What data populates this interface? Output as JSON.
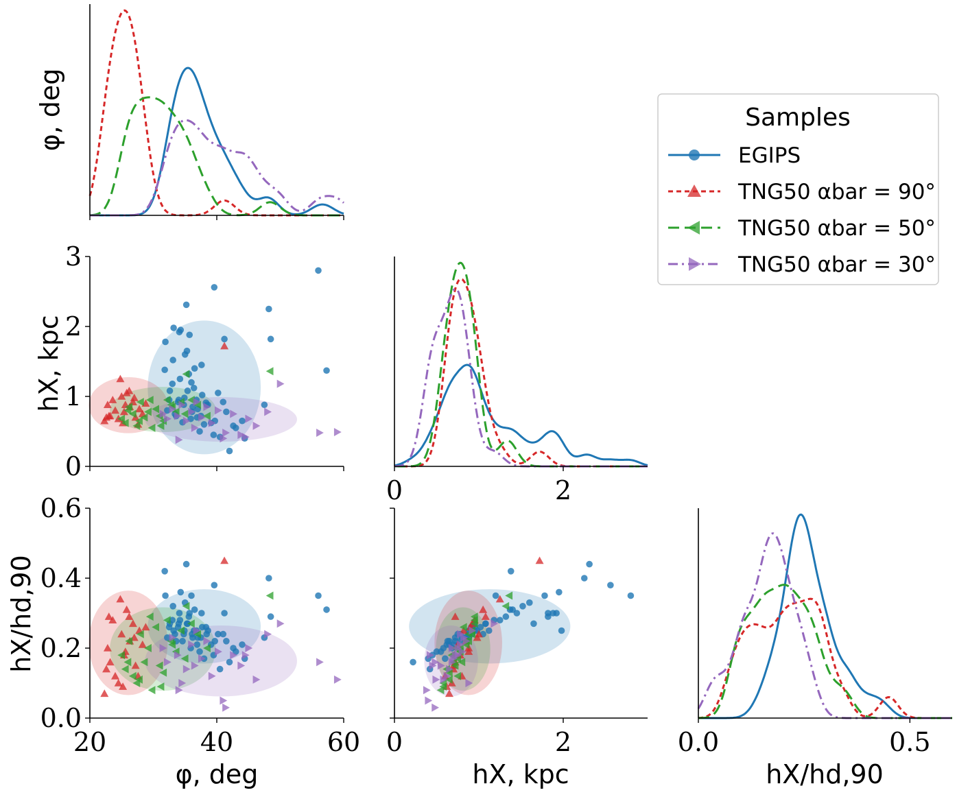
{
  "chart_data": {
    "type": "scatter",
    "subtype": "corner plot (pair plot with KDE diagonals and density contours)",
    "variables": [
      "φ, deg",
      "h_X, kpc",
      "h_X/h_d,90"
    ],
    "axis_labels": {
      "phi": "φ, deg",
      "hx": "hX, kpc",
      "ratio": "hX/hd,90"
    },
    "ranges": {
      "phi": [
        20,
        60
      ],
      "hx": [
        0,
        3
      ],
      "ratio": [
        0,
        0.6
      ]
    },
    "ticks": {
      "phi": [
        20,
        40,
        60
      ],
      "hx": [
        0,
        1,
        2,
        3
      ],
      "hx_x": [
        0,
        2
      ],
      "ratio": [
        0.0,
        0.2,
        0.4,
        0.6
      ],
      "ratio_x": [
        0.0,
        0.5
      ]
    },
    "tick_labels": {
      "phi": [
        "20",
        "40",
        "60"
      ],
      "hx": [
        "0",
        "1",
        "2",
        "3"
      ],
      "hx_x": [
        "0",
        "2"
      ],
      "ratio": [
        "0.0",
        "0.2",
        "0.4",
        "0.6"
      ],
      "ratio_x": [
        "0.0",
        "0.5"
      ]
    },
    "legend": {
      "title": "Samples",
      "placement": "upper-right",
      "entries": [
        {
          "name": "EGIPS",
          "color": "#1f77b4",
          "marker": "circle",
          "linestyle": "solid"
        },
        {
          "name": "TNG50 αbar = 90°",
          "color": "#d62728",
          "marker": "triangle-up",
          "linestyle": "dashed"
        },
        {
          "name": "TNG50 αbar = 50°",
          "color": "#2ca02c",
          "marker": "triangle-left",
          "linestyle": "long-dashed"
        },
        {
          "name": "TNG50 αbar = 30°",
          "color": "#9467bd",
          "marker": "triangle-right",
          "linestyle": "dash-dot"
        }
      ]
    },
    "series": [
      {
        "name": "EGIPS",
        "color": "#1f77b4",
        "phi": [
          31.8,
          32.5,
          33.1,
          33.6,
          34.2,
          34.8,
          35.3,
          35.9,
          36.4,
          37.0,
          37.6,
          38.3,
          39.1,
          40.2,
          41.5,
          43.0,
          31.9,
          32.6,
          33.4,
          34.1,
          34.9,
          35.6,
          36.2,
          36.9,
          37.7,
          38.6,
          39.7,
          41.0,
          42.6,
          44.4,
          47.5,
          32.2,
          33.0,
          33.9,
          34.6,
          35.4,
          36.1,
          36.8,
          37.5,
          38.4,
          39.5,
          35.0,
          36.5,
          48.2,
          48.5,
          56.0,
          57.3,
          39.6,
          35.2,
          41.2,
          33.2,
          34.3,
          35.7,
          37.3,
          38.0,
          40.5,
          42.0,
          44.0,
          34.0,
          36.0
        ],
        "hx": [
          1.38,
          0.95,
          1.52,
          0.72,
          1.25,
          0.88,
          1.65,
          0.68,
          1.12,
          0.82,
          1.45,
          0.91,
          0.62,
          1.05,
          0.78,
          0.55,
          1.78,
          1.08,
          0.75,
          1.92,
          0.98,
          1.32,
          0.85,
          0.7,
          1.02,
          0.88,
          0.65,
          0.92,
          0.58,
          0.4,
          0.88,
          0.8,
          1.18,
          0.92,
          0.63,
          1.08,
          0.78,
          0.95,
          0.72,
          0.88,
          0.45,
          1.6,
          1.4,
          2.25,
          1.82,
          2.8,
          1.37,
          2.56,
          2.31,
          1.82,
          1.98,
          1.95,
          1.88,
          0.5,
          0.6,
          0.42,
          0.22,
          0.65,
          0.95,
          1.2
        ],
        "ratio": [
          0.42,
          0.26,
          0.32,
          0.22,
          0.28,
          0.24,
          0.27,
          0.2,
          0.25,
          0.23,
          0.3,
          0.26,
          0.21,
          0.24,
          0.22,
          0.19,
          0.35,
          0.27,
          0.24,
          0.3,
          0.25,
          0.29,
          0.23,
          0.21,
          0.26,
          0.25,
          0.22,
          0.24,
          0.2,
          0.17,
          0.23,
          0.23,
          0.28,
          0.26,
          0.22,
          0.27,
          0.24,
          0.25,
          0.23,
          0.24,
          0.18,
          0.33,
          0.31,
          0.4,
          0.29,
          0.35,
          0.31,
          0.38,
          0.44,
          0.3,
          0.25,
          0.36,
          0.3,
          0.19,
          0.17,
          0.14,
          0.16,
          0.21,
          0.27,
          0.35
        ]
      },
      {
        "name": "TNG50 αbar = 90°",
        "color": "#d62728",
        "phi": [
          22.3,
          22.8,
          23.2,
          23.6,
          24.0,
          24.5,
          25.0,
          25.4,
          25.8,
          26.3,
          26.8,
          27.2,
          27.8,
          28.3,
          22.6,
          24.8,
          25.6,
          26.2,
          27.0,
          27.6,
          41.2,
          28.8,
          23.0,
          25.2
        ],
        "hx": [
          0.65,
          0.88,
          0.72,
          0.95,
          0.8,
          0.68,
          1.0,
          0.78,
          1.05,
          0.85,
          0.92,
          0.7,
          0.82,
          0.75,
          0.7,
          1.25,
          0.88,
          1.08,
          0.98,
          0.6,
          1.72,
          0.9,
          0.72,
          0.62
        ],
        "ratio": [
          0.07,
          0.2,
          0.16,
          0.28,
          0.12,
          0.1,
          0.24,
          0.18,
          0.31,
          0.22,
          0.27,
          0.15,
          0.25,
          0.21,
          0.14,
          0.34,
          0.19,
          0.29,
          0.23,
          0.12,
          0.45,
          0.26,
          0.29,
          0.09
        ]
      },
      {
        "name": "TNG50 αbar = 50°",
        "color": "#2ca02c",
        "phi": [
          25.0,
          25.6,
          26.2,
          26.8,
          27.4,
          28.0,
          28.6,
          29.2,
          29.8,
          30.4,
          31.0,
          31.6,
          32.2,
          32.8,
          33.6,
          34.4,
          35.2,
          36.0,
          37.0,
          38.5,
          48.4,
          26.0,
          27.8,
          29.5,
          31.2,
          33.0,
          35.0
        ],
        "hx": [
          0.68,
          0.62,
          0.85,
          0.75,
          0.58,
          0.92,
          0.7,
          0.78,
          0.55,
          0.82,
          0.72,
          0.65,
          0.95,
          0.88,
          0.78,
          0.92,
          1.32,
          0.95,
          0.88,
          0.72,
          1.36,
          0.8,
          0.65,
          0.95,
          0.58,
          0.85,
          0.75
        ],
        "ratio": [
          0.18,
          0.14,
          0.22,
          0.12,
          0.1,
          0.24,
          0.16,
          0.2,
          0.08,
          0.26,
          0.15,
          0.13,
          0.28,
          0.22,
          0.19,
          0.25,
          0.32,
          0.27,
          0.24,
          0.2,
          0.35,
          0.16,
          0.11,
          0.29,
          0.09,
          0.21,
          0.17
        ]
      },
      {
        "name": "TNG50 αbar = 30°",
        "color": "#9467bd",
        "phi": [
          31.5,
          32.2,
          33.0,
          33.8,
          34.5,
          35.2,
          36.0,
          36.8,
          37.6,
          38.4,
          39.2,
          40.2,
          41.4,
          42.6,
          43.8,
          45.0,
          46.2,
          48.0,
          50.0,
          56.2,
          59.0,
          34.0,
          36.5,
          41.0,
          44.5
        ],
        "hx": [
          0.75,
          0.68,
          0.82,
          0.72,
          0.88,
          0.65,
          0.78,
          0.92,
          0.7,
          0.85,
          0.62,
          0.8,
          0.48,
          0.75,
          0.45,
          0.68,
          0.58,
          0.78,
          1.18,
          0.48,
          0.49,
          0.38,
          0.55,
          0.4,
          0.42
        ],
        "ratio": [
          0.2,
          0.16,
          0.23,
          0.18,
          0.1,
          0.14,
          0.21,
          0.25,
          0.17,
          0.22,
          0.12,
          0.19,
          0.03,
          0.18,
          0.15,
          0.2,
          0.11,
          0.24,
          0.27,
          0.16,
          0.11,
          0.08,
          0.15,
          0.05,
          0.18
        ]
      }
    ],
    "kde_diagonal": "one smoothed density curve per series on each diagonal panel; y axis of top-left panel labelled φ, deg with no tick labels"
  }
}
